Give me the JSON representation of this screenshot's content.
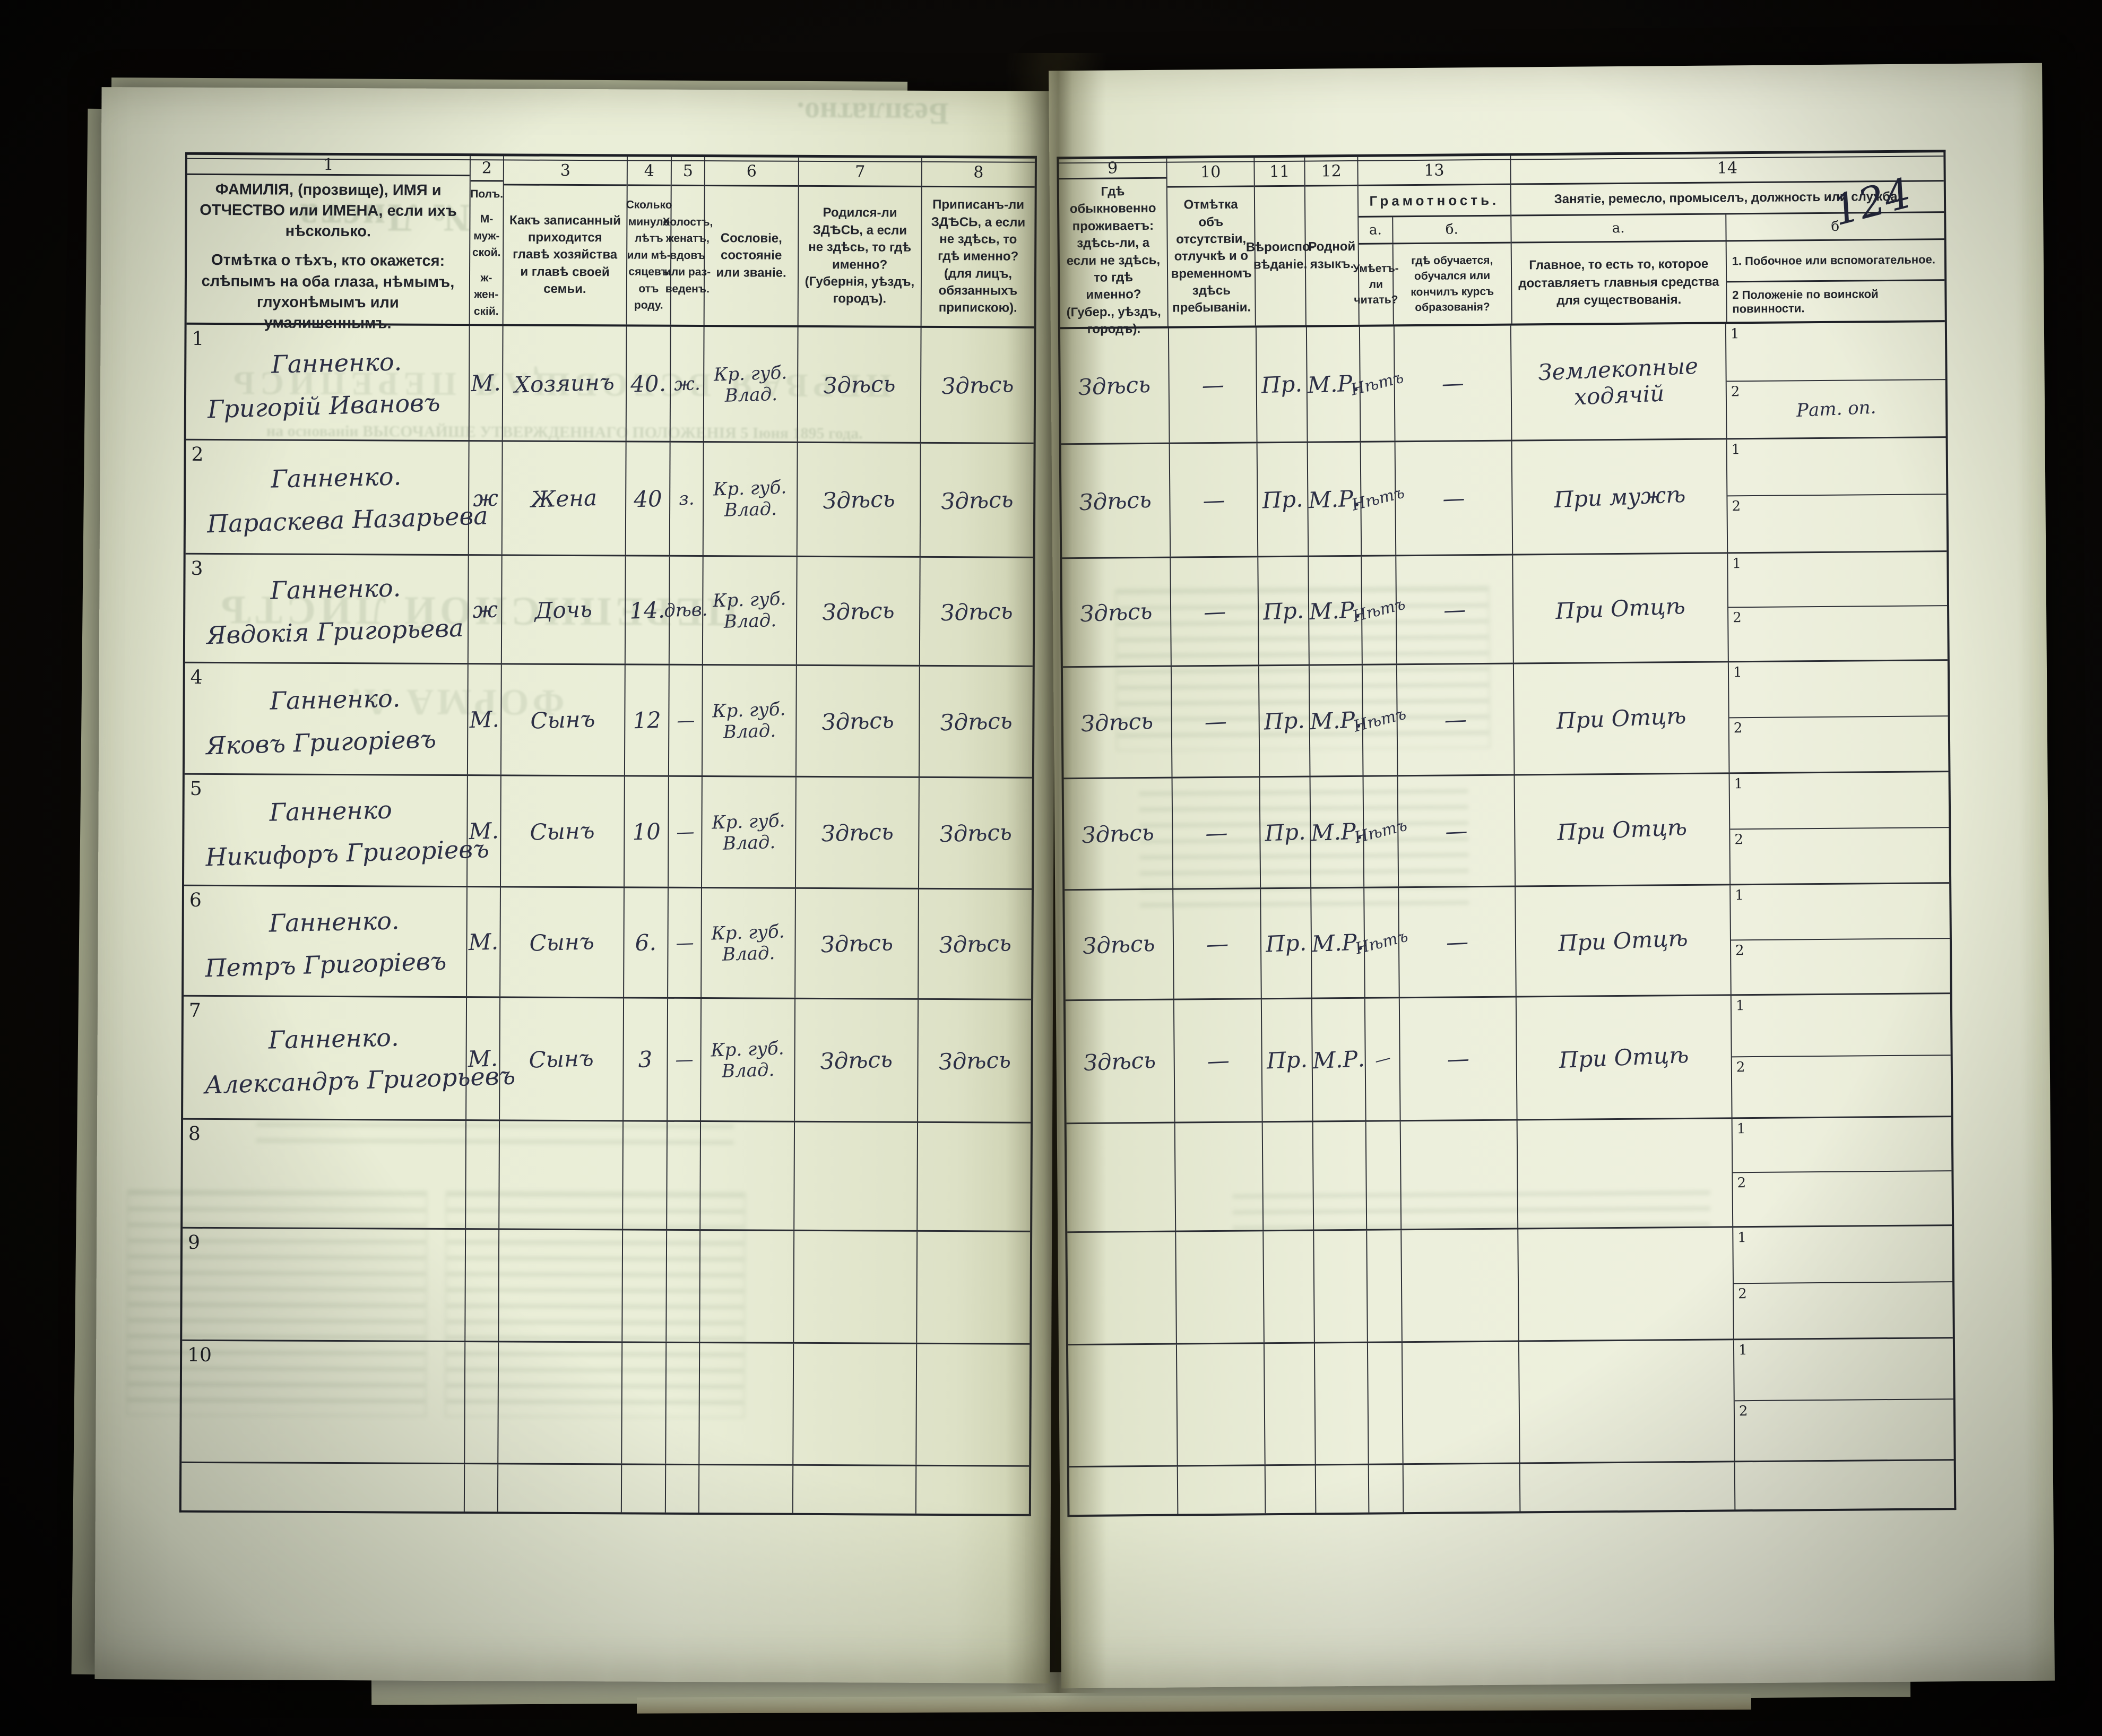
{
  "photo": {
    "handwritten_page_number": "124"
  },
  "header": {
    "nums": [
      "1",
      "2",
      "3",
      "4",
      "5",
      "6",
      "7",
      "8",
      "9",
      "10",
      "11",
      "12",
      "13",
      "14"
    ],
    "col1_main": "ФАМИЛІЯ, (прозвище), ИМЯ и ОТЧЕСТВО или ИМЕНА, если ихъ нѣсколько.",
    "col1_note": "Отмѣтка о тѣхъ, кто окажется: слѣпымъ на оба глаза, нѣмымъ, глухонѣмымъ или умалишеннымъ.",
    "col2_l1": "Полъ.",
    "col2_l2": "М-муж-ской.",
    "col2_l3": "ж-жен-скій.",
    "col3": "Какъ записанный при­ходится главѣ хозяй­ства и главѣ своей семьи.",
    "col4": "Сколько минуло лѣтъ или мѣ­сяцевъ отъ роду.",
    "col5": "Холостъ, женатъ, вдовъ или раз­веденъ.",
    "col6": "Сословіе, со­стояніе или зва­ніе.",
    "col7": "Родился-ли ЗДѢСЬ, а если не здѣсь, то гдѣ именно? (Губернія, уѣздъ, городъ).",
    "col8": "Приписанъ-ли ЗДѢСЬ, а если не здѣсь, то гдѣ именно? (для лицъ, обязанныхъ припискою).",
    "col9": "Гдѣ обыкновенно проживаетъ: здѣсь-ли, а если не здѣсь, то гдѣ именно? (Губер., уѣздъ, городъ).",
    "col10": "Отмѣтка объ отсутствіи, отлучкѣ и о временномъ здѣсь пребыва­ніи.",
    "col11": "Вѣроиспо­вѣданіе.",
    "col12": "Родной языкъ.",
    "col13": {
      "title": "Грамотность.",
      "a_label": "а.",
      "b_label": "б.",
      "a_desc": "Умѣетъ-ли читать?",
      "b_desc": "гдѣ обучается, обучался или кончилъ курсъ образованія?"
    },
    "col14": {
      "title": "Занятіе, ремесло, промыселъ, должность или служба.",
      "a_label": "а.",
      "b_label": "б",
      "a_desc": "Главное, то есть то, которое доставляетъ главныя средства для существованія.",
      "b1": "1.  Побочное или вспомогательное.",
      "b2": "2  Положеніе по воинской повинности.",
      "row_sub1": "1",
      "row_sub2": "2"
    }
  },
  "rows": [
    {
      "num": "1",
      "surname": "Ганненко.",
      "name": "Григорій Ивановъ",
      "sex": "М.",
      "relation": "Хозяинъ",
      "age": "40.",
      "marital": "ж.",
      "estate": "Кр. губ. Влад.",
      "born": "Здѣсь",
      "registered": "Здѣсь",
      "residence": "Здѣсь",
      "absence": "—",
      "faith": "Пр.",
      "language": "М.Р.",
      "reads": "Нѣтъ",
      "educated": "—",
      "occupation": "Землекопные ходячій",
      "side1": "",
      "side2": "Рат. оп."
    },
    {
      "num": "2",
      "surname": "Ганненко.",
      "name": "Параскева Назарьева",
      "sex": "ж",
      "relation": "Жена",
      "age": "40",
      "marital": "з.",
      "estate": "Кр. губ. Влад.",
      "born": "Здѣсь",
      "registered": "Здѣсь",
      "residence": "Здѣсь",
      "absence": "—",
      "faith": "Пр.",
      "language": "М.Р.",
      "reads": "Нѣтъ",
      "educated": "—",
      "occupation": "При мужѣ",
      "side1": "",
      "side2": ""
    },
    {
      "num": "3",
      "surname": "Ганненко.",
      "name": "Явдокія Григорьева",
      "sex": "ж",
      "relation": "Дочь",
      "age": "14.",
      "marital": "дѣв.",
      "estate": "Кр. губ. Влад.",
      "born": "Здѣсь",
      "registered": "Здѣсь",
      "residence": "Здѣсь",
      "absence": "—",
      "faith": "Пр.",
      "language": "М.Р.",
      "reads": "Нѣтъ",
      "educated": "—",
      "occupation": "При Отцѣ",
      "side1": "",
      "side2": ""
    },
    {
      "num": "4",
      "surname": "Ганненко.",
      "name": "Яковъ Григоріевъ",
      "sex": "М.",
      "relation": "Сынъ",
      "age": "12",
      "marital": "—",
      "estate": "Кр. губ. Влад.",
      "born": "Здѣсь",
      "registered": "Здѣсь",
      "residence": "Здѣсь",
      "absence": "—",
      "faith": "Пр.",
      "language": "М.Р.",
      "reads": "Нѣтъ",
      "educated": "—",
      "occupation": "При Отцѣ",
      "side1": "",
      "side2": ""
    },
    {
      "num": "5",
      "surname": "Ганненко",
      "name": "Никифоръ Григоріевъ",
      "sex": "М.",
      "relation": "Сынъ",
      "age": "10",
      "marital": "—",
      "estate": "Кр. губ. Влад.",
      "born": "Здѣсь",
      "registered": "Здѣсь",
      "residence": "Здѣсь",
      "absence": "—",
      "faith": "Пр.",
      "language": "М.Р.",
      "reads": "Нѣтъ",
      "educated": "—",
      "occupation": "При Отцѣ",
      "side1": "",
      "side2": ""
    },
    {
      "num": "6",
      "surname": "Ганненко.",
      "name": "Петръ Григоріевъ",
      "sex": "М.",
      "relation": "Сынъ",
      "age": "6.",
      "marital": "—",
      "estate": "Кр. губ. Влад.",
      "born": "Здѣсь",
      "registered": "Здѣсь",
      "residence": "Здѣсь",
      "absence": "—",
      "faith": "Пр.",
      "language": "М.Р.",
      "reads": "Нѣтъ",
      "educated": "—",
      "occupation": "При Отцѣ",
      "side1": "",
      "side2": ""
    },
    {
      "num": "7",
      "surname": "Ганненко.",
      "name": "Александръ Григорьевъ",
      "sex": "М.",
      "relation": "Сынъ",
      "age": "3",
      "marital": "—",
      "estate": "Кр. губ. Влад.",
      "born": "Здѣсь",
      "registered": "Здѣсь",
      "residence": "Здѣсь",
      "absence": "—",
      "faith": "Пр.",
      "language": "М.Р.",
      "reads": "—",
      "educated": "—",
      "occupation": "При Отцѣ",
      "side1": "",
      "side2": ""
    },
    {
      "num": "8",
      "surname": "",
      "name": "",
      "sex": "",
      "relation": "",
      "age": "",
      "marital": "",
      "estate": "",
      "born": "",
      "registered": "",
      "residence": "",
      "absence": "",
      "faith": "",
      "language": "",
      "reads": "",
      "educated": "",
      "occupation": "",
      "side1": "",
      "side2": ""
    },
    {
      "num": "9",
      "surname": "",
      "name": "",
      "sex": "",
      "relation": "",
      "age": "",
      "marital": "",
      "estate": "",
      "born": "",
      "registered": "",
      "residence": "",
      "absence": "",
      "faith": "",
      "language": "",
      "reads": "",
      "educated": "",
      "occupation": "",
      "side1": "",
      "side2": ""
    },
    {
      "num": "10",
      "surname": "",
      "name": "",
      "sex": "",
      "relation": "",
      "age": "",
      "marital": "",
      "estate": "",
      "born": "",
      "registered": "",
      "residence": "",
      "absence": "",
      "faith": "",
      "language": "",
      "reads": "",
      "educated": "",
      "occupation": "",
      "side1": "",
      "side2": ""
    }
  ],
  "showthrough": {
    "free_label": "Безплатно.",
    "sheet_label": "№ Листа",
    "big_title": "ПЕРВАЯ ВСЕОБЩАЯ ПЕРЕПИСЬ",
    "decree_line": "на основаніи ВЫСОЧАЙШЕ УТВЕРЖДЕННАГО ПОЛОЖЕНІЯ 5 Іюня 1895 года.",
    "list_title": "ПЕРЕПИСНОЙ ЛИСТЪ",
    "form_label": "ФОРМА А."
  }
}
